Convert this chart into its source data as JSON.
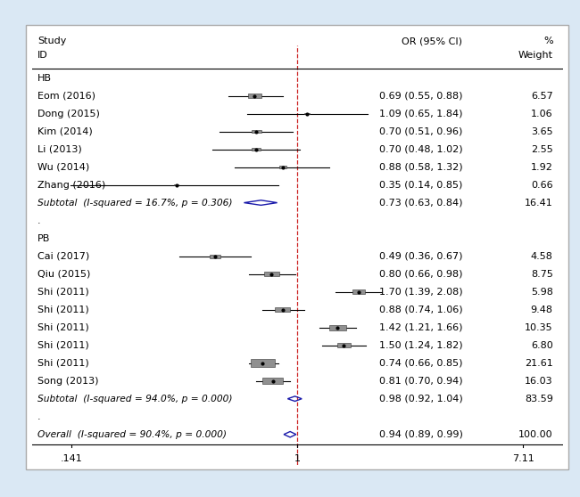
{
  "background_color": "#dae8f4",
  "plot_bg_color": "#ffffff",
  "x_ticks": [
    0.141,
    1.0,
    7.11
  ],
  "x_tick_labels": [
    ".141",
    "1",
    "7.11"
  ],
  "x_min": 0.1,
  "x_max": 10.0,
  "dashed_color": "#cc2222",
  "diamond_color": "#1a1aaa",
  "box_color": "#909090",
  "line_color": "#000000",
  "font_size": 8.0,
  "max_weight": 21.61,
  "groups": [
    {
      "label": "HB",
      "studies": [
        {
          "name": "Eom (2016)",
          "or": 0.69,
          "ci_lo": 0.55,
          "ci_hi": 0.88,
          "weight": 6.57,
          "or_txt": "0.69 (0.55, 0.88)",
          "wt_txt": "6.57"
        },
        {
          "name": "Dong (2015)",
          "or": 1.09,
          "ci_lo": 0.65,
          "ci_hi": 1.84,
          "weight": 1.06,
          "or_txt": "1.09 (0.65, 1.84)",
          "wt_txt": "1.06"
        },
        {
          "name": "Kim (2014)",
          "or": 0.7,
          "ci_lo": 0.51,
          "ci_hi": 0.96,
          "weight": 3.65,
          "or_txt": "0.70 (0.51, 0.96)",
          "wt_txt": "3.65"
        },
        {
          "name": "Li (2013)",
          "or": 0.7,
          "ci_lo": 0.48,
          "ci_hi": 1.02,
          "weight": 2.55,
          "or_txt": "0.70 (0.48, 1.02)",
          "wt_txt": "2.55"
        },
        {
          "name": "Wu (2014)",
          "or": 0.88,
          "ci_lo": 0.58,
          "ci_hi": 1.32,
          "weight": 1.92,
          "or_txt": "0.88 (0.58, 1.32)",
          "wt_txt": "1.92"
        },
        {
          "name": "Zhang (2016)",
          "or": 0.35,
          "ci_lo": 0.14,
          "ci_hi": 0.85,
          "weight": 0.66,
          "or_txt": "0.35 (0.14, 0.85)",
          "wt_txt": "0.66"
        }
      ],
      "subtotal": {
        "or": 0.73,
        "ci_lo": 0.63,
        "ci_hi": 0.84,
        "or_txt": "0.73 (0.63, 0.84)",
        "wt_txt": "16.41",
        "label": "Subtotal  (I-squared = 16.7%, p = 0.306)"
      }
    },
    {
      "label": "PB",
      "studies": [
        {
          "name": "Cai (2017)",
          "or": 0.49,
          "ci_lo": 0.36,
          "ci_hi": 0.67,
          "weight": 4.58,
          "or_txt": "0.49 (0.36, 0.67)",
          "wt_txt": "4.58"
        },
        {
          "name": "Qiu (2015)",
          "or": 0.8,
          "ci_lo": 0.66,
          "ci_hi": 0.98,
          "weight": 8.75,
          "or_txt": "0.80 (0.66, 0.98)",
          "wt_txt": "8.75"
        },
        {
          "name": "Shi (2011)",
          "or": 1.7,
          "ci_lo": 1.39,
          "ci_hi": 2.08,
          "weight": 5.98,
          "or_txt": "1.70 (1.39, 2.08)",
          "wt_txt": "5.98"
        },
        {
          "name": "Shi (2011)",
          "or": 0.88,
          "ci_lo": 0.74,
          "ci_hi": 1.06,
          "weight": 9.48,
          "or_txt": "0.88 (0.74, 1.06)",
          "wt_txt": "9.48"
        },
        {
          "name": "Shi (2011)",
          "or": 1.42,
          "ci_lo": 1.21,
          "ci_hi": 1.66,
          "weight": 10.35,
          "or_txt": "1.42 (1.21, 1.66)",
          "wt_txt": "10.35"
        },
        {
          "name": "Shi (2011)",
          "or": 1.5,
          "ci_lo": 1.24,
          "ci_hi": 1.82,
          "weight": 6.8,
          "or_txt": "1.50 (1.24, 1.82)",
          "wt_txt": "6.80"
        },
        {
          "name": "Shi (2011)",
          "or": 0.74,
          "ci_lo": 0.66,
          "ci_hi": 0.85,
          "weight": 21.61,
          "or_txt": "0.74 (0.66, 0.85)",
          "wt_txt": "21.61"
        },
        {
          "name": "Song (2013)",
          "or": 0.81,
          "ci_lo": 0.7,
          "ci_hi": 0.94,
          "weight": 16.03,
          "or_txt": "0.81 (0.70, 0.94)",
          "wt_txt": "16.03"
        }
      ],
      "subtotal": {
        "or": 0.98,
        "ci_lo": 0.92,
        "ci_hi": 1.04,
        "or_txt": "0.98 (0.92, 1.04)",
        "wt_txt": "83.59",
        "label": "Subtotal  (I-squared = 94.0%, p = 0.000)"
      }
    }
  ],
  "overall": {
    "or": 0.94,
    "ci_lo": 0.89,
    "ci_hi": 0.99,
    "or_txt": "0.94 (0.89, 0.99)",
    "wt_txt": "100.00",
    "label": "Overall  (I-squared = 90.4%, p = 0.000)"
  }
}
